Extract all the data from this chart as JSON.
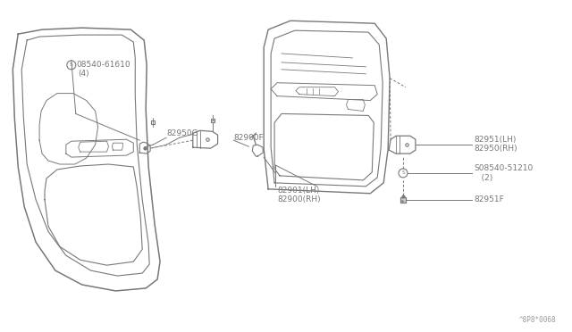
{
  "bg_color": "#ffffff",
  "line_color": "#787878",
  "text_color": "#787878",
  "watermark": "^8P8*0068",
  "font_size": 6.5,
  "label_82950G": "82950G",
  "label_82900RH": "82900(RH)",
  "label_82901LH": "82901(LH)",
  "label_82900F": "82900F",
  "label_82951F": "82951F",
  "label_08540_51210": "S08540-51210\n   (2)",
  "label_82950RH": "82950(RH)",
  "label_82951LH": "82951(LH)",
  "label_08540_61610": "S08540-61610\n   (4)"
}
